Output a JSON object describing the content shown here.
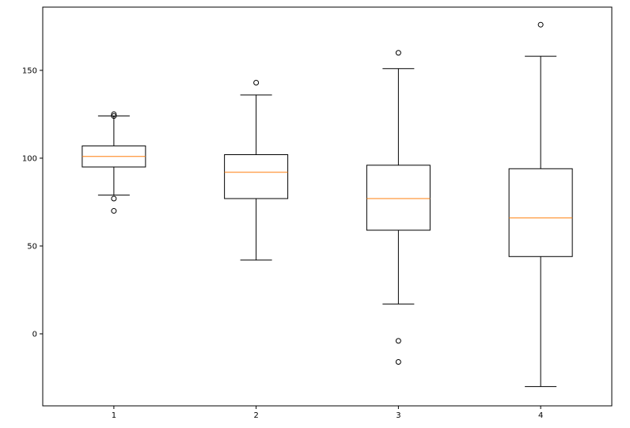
{
  "chart_data": {
    "type": "boxplot",
    "title": "",
    "xlabel": "",
    "ylabel": "",
    "xlim": [
      0.5,
      4.5
    ],
    "ylim": [
      -41,
      186
    ],
    "grid": false,
    "x_ticks": [
      "1",
      "2",
      "3",
      "4"
    ],
    "y_ticks": [
      0,
      50,
      100,
      150
    ],
    "colors": {
      "box": "#000000",
      "median": "#ff7f0e",
      "flier": "#000000"
    },
    "series": [
      {
        "category": "1",
        "whisker_low": 79,
        "q1": 95,
        "median": 101,
        "q3": 107,
        "whisker_high": 124,
        "fliers": [
          124,
          125,
          77,
          70
        ]
      },
      {
        "category": "2",
        "whisker_low": 42,
        "q1": 77,
        "median": 92,
        "q3": 102,
        "whisker_high": 136,
        "fliers": [
          143
        ]
      },
      {
        "category": "3",
        "whisker_low": 17,
        "q1": 59,
        "median": 77,
        "q3": 96,
        "whisker_high": 151,
        "fliers": [
          160,
          -4,
          -16
        ]
      },
      {
        "category": "4",
        "whisker_low": -30,
        "q1": 44,
        "median": 66,
        "q3": 94,
        "whisker_high": 158,
        "fliers": [
          176
        ]
      }
    ]
  }
}
